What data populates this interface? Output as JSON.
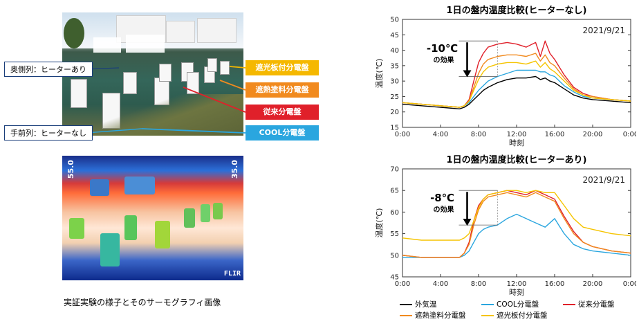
{
  "photo": {
    "tags_left": [
      "奥側列：ヒーターあり",
      "手前列：ヒーターなし"
    ],
    "tags_right": [
      {
        "label": "遮光板付分電盤",
        "color": "#f5b800"
      },
      {
        "label": "遮熱塗料分電盤",
        "color": "#f18a1e"
      },
      {
        "label": "従来分電盤",
        "color": "#e0202a"
      },
      {
        "label": "COOL分電盤",
        "color": "#2aa6df"
      }
    ]
  },
  "thermal": {
    "label_left": "55.0",
    "label_right": "35.0",
    "brand": "FLIR"
  },
  "caption": "実証実験の様子とそのサーモグラフィ画像",
  "legend": [
    "外気温",
    "COOL分電盤",
    "従来分電盤",
    "遮熱塗料分電盤",
    "遮光板付分電盤"
  ],
  "chart_data": [
    {
      "type": "line",
      "title": "1日の盤内温度比較(ヒーターなし)",
      "date": "2021/9/21",
      "xlabel": "時刻",
      "ylabel": "温度(℃)",
      "ylim": [
        15,
        50
      ],
      "yticks": [
        15,
        20,
        25,
        30,
        35,
        40,
        45,
        50
      ],
      "xticks": [
        "0:00",
        "4:00",
        "8:00",
        "12:00",
        "16:00",
        "20:00",
        "0:00"
      ],
      "annotation": {
        "text": "-10℃",
        "sub": "の効果"
      },
      "x": [
        0,
        2,
        4,
        6,
        6.5,
        7,
        7.5,
        8,
        8.5,
        9,
        10,
        11,
        12,
        13,
        14,
        14.5,
        15,
        15.5,
        16,
        17,
        18,
        19,
        20,
        22,
        24
      ],
      "series": [
        {
          "name": "外気温",
          "color": "#000000",
          "values": [
            22.5,
            22,
            21.5,
            21,
            21.5,
            22.5,
            24,
            25.5,
            27,
            28,
            29.5,
            30.5,
            31,
            31,
            31.5,
            30.5,
            31,
            30,
            29.5,
            27.5,
            25.5,
            24.5,
            24,
            23.5,
            23
          ]
        },
        {
          "name": "COOL分電盤",
          "color": "#2aa6df",
          "values": [
            23,
            22.5,
            22,
            21.5,
            22,
            23,
            25,
            27,
            28.5,
            30,
            31.5,
            32.5,
            33.5,
            33.5,
            33.5,
            33,
            33,
            32,
            31.5,
            28.5,
            26.5,
            25,
            24.5,
            24,
            23.5
          ]
        },
        {
          "name": "従来分電盤",
          "color": "#e0202a",
          "values": [
            23,
            22.5,
            22,
            21.5,
            22,
            24,
            30,
            36,
            39,
            41,
            42,
            42.5,
            42,
            41,
            42.5,
            38,
            43,
            39,
            37,
            32,
            28,
            26,
            25,
            24,
            23.5
          ]
        },
        {
          "name": "遮熱塗料分電盤",
          "color": "#f18a1e",
          "values": [
            23,
            22.5,
            22,
            21.5,
            22,
            23.5,
            28,
            32.5,
            35.5,
            37,
            38,
            38.5,
            38.5,
            38,
            39,
            36.5,
            38.5,
            36,
            35,
            31,
            27.5,
            25.5,
            25,
            24,
            23.5
          ]
        },
        {
          "name": "遮光板付分電盤",
          "color": "#f5c400",
          "values": [
            23,
            22.5,
            22,
            21.5,
            22,
            23.5,
            27,
            30.5,
            33,
            34.5,
            35.5,
            36,
            36,
            35.5,
            36.5,
            34.5,
            36,
            34,
            33,
            30,
            27,
            25.5,
            24.5,
            24,
            23.5
          ]
        }
      ]
    },
    {
      "type": "line",
      "title": "1日の盤内温度比較(ヒーターあり)",
      "date": "2021/9/21",
      "xlabel": "時刻",
      "ylabel": "温度(℃)",
      "ylim": [
        45,
        70
      ],
      "yticks": [
        45,
        50,
        55,
        60,
        65,
        70
      ],
      "xticks": [
        "0:00",
        "4:00",
        "8:00",
        "12:00",
        "16:00",
        "20:00",
        "0:00"
      ],
      "annotation": {
        "text": "-8℃",
        "sub": "の効果"
      },
      "x": [
        0,
        2,
        4,
        6,
        6.5,
        7,
        7.5,
        8,
        8.5,
        9,
        10,
        11,
        12,
        13,
        14,
        15,
        16,
        17,
        18,
        19,
        20,
        22,
        24
      ],
      "series": [
        {
          "name": "COOL分電盤",
          "color": "#2aa6df",
          "values": [
            49.5,
            49.5,
            49.5,
            49.5,
            50,
            51,
            53,
            55,
            56,
            56.5,
            57,
            58.5,
            59.5,
            58.5,
            57.5,
            56.5,
            58.5,
            55,
            52.5,
            51.5,
            51,
            50.5,
            50
          ]
        },
        {
          "name": "従来分電盤",
          "color": "#e0202a",
          "values": [
            50,
            49.5,
            49.5,
            49.5,
            50.5,
            53,
            58,
            61.5,
            63,
            64,
            64.5,
            65,
            64.5,
            64,
            65,
            64,
            63,
            59,
            55.5,
            53,
            52,
            51,
            50.5
          ]
        },
        {
          "name": "遮熱塗料分電盤",
          "color": "#f18a1e",
          "values": [
            50,
            49.5,
            49.5,
            49.5,
            50.5,
            52.5,
            57,
            60.5,
            62.5,
            63.5,
            64,
            64.5,
            64,
            63.5,
            64.5,
            63.5,
            62.5,
            58.5,
            55,
            53,
            52,
            51,
            50.5
          ]
        },
        {
          "name": "遮光板付分電盤",
          "color": "#f5c400",
          "values": [
            54,
            53.5,
            53.5,
            53.5,
            54,
            55,
            58,
            61,
            63,
            64,
            64.5,
            65,
            65,
            64.5,
            65,
            64.5,
            64.5,
            61.5,
            58.5,
            56.5,
            56,
            55,
            54.5
          ]
        }
      ]
    }
  ]
}
